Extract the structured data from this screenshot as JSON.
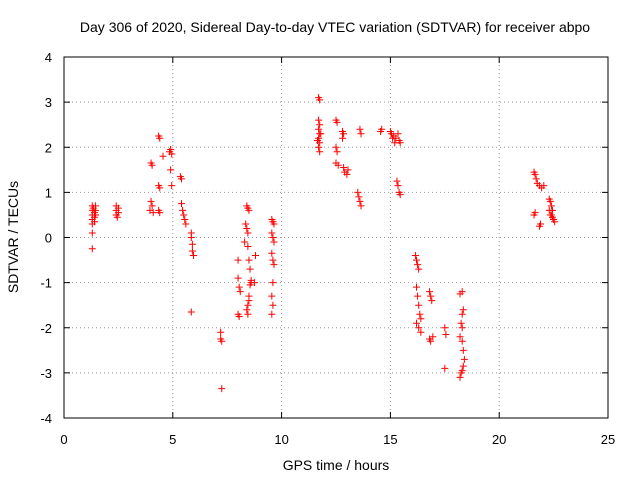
{
  "chart_data": {
    "type": "scatter",
    "title": "Day 306 of 2020, Sidereal Day-to-day VTEC variation (SDTVAR) for receiver abpo",
    "xlabel": "GPS time / hours",
    "ylabel": "SDTVAR / TECUs",
    "xlim": [
      0,
      25
    ],
    "ylim": [
      -4,
      4
    ],
    "xticks": [
      0,
      5,
      10,
      15,
      20,
      25
    ],
    "yticks": [
      -4,
      -3,
      -2,
      -1,
      0,
      1,
      2,
      3,
      4
    ],
    "grid": true,
    "marker": "+",
    "color": "#ff0000",
    "series": [
      {
        "name": "SDTVAR",
        "points": [
          [
            1.3,
            0.7
          ],
          [
            1.3,
            0.6
          ],
          [
            1.3,
            0.5
          ],
          [
            1.3,
            0.4
          ],
          [
            1.3,
            0.3
          ],
          [
            1.3,
            0.1
          ],
          [
            1.3,
            -0.25
          ],
          [
            1.35,
            0.65
          ],
          [
            1.4,
            0.55
          ],
          [
            1.4,
            0.45
          ],
          [
            1.4,
            0.35
          ],
          [
            1.45,
            0.6
          ],
          [
            1.45,
            0.5
          ],
          [
            1.45,
            0.7
          ],
          [
            2.4,
            0.7
          ],
          [
            2.4,
            0.6
          ],
          [
            2.4,
            0.5
          ],
          [
            2.45,
            0.45
          ],
          [
            2.5,
            0.65
          ],
          [
            2.5,
            0.55
          ],
          [
            3.95,
            0.6
          ],
          [
            4.0,
            0.8
          ],
          [
            4.0,
            1.65
          ],
          [
            4.05,
            1.6
          ],
          [
            4.05,
            0.7
          ],
          [
            4.1,
            0.55
          ],
          [
            4.35,
            2.25
          ],
          [
            4.4,
            2.2
          ],
          [
            4.35,
            1.15
          ],
          [
            4.4,
            1.1
          ],
          [
            4.35,
            0.6
          ],
          [
            4.4,
            0.55
          ],
          [
            4.55,
            1.8
          ],
          [
            4.85,
            1.9
          ],
          [
            4.9,
            1.95
          ],
          [
            4.95,
            1.85
          ],
          [
            4.9,
            1.5
          ],
          [
            4.95,
            1.15
          ],
          [
            5.35,
            1.35
          ],
          [
            5.4,
            1.3
          ],
          [
            5.4,
            0.75
          ],
          [
            5.45,
            0.6
          ],
          [
            5.5,
            0.5
          ],
          [
            5.55,
            0.4
          ],
          [
            5.6,
            0.3
          ],
          [
            5.85,
            0.1
          ],
          [
            5.85,
            0.0
          ],
          [
            5.9,
            -0.15
          ],
          [
            5.9,
            -0.3
          ],
          [
            5.95,
            -0.4
          ],
          [
            5.85,
            -1.65
          ],
          [
            7.2,
            -2.1
          ],
          [
            7.2,
            -2.25
          ],
          [
            7.25,
            -2.3
          ],
          [
            7.25,
            -3.35
          ],
          [
            8.0,
            -0.5
          ],
          [
            8.0,
            -0.9
          ],
          [
            8.05,
            -1.1
          ],
          [
            8.1,
            -1.2
          ],
          [
            8.0,
            -1.7
          ],
          [
            8.05,
            -1.75
          ],
          [
            8.3,
            -0.1
          ],
          [
            8.35,
            0.3
          ],
          [
            8.4,
            0.7
          ],
          [
            8.45,
            0.65
          ],
          [
            8.5,
            0.6
          ],
          [
            8.4,
            0.2
          ],
          [
            8.45,
            0.1
          ],
          [
            8.45,
            -0.2
          ],
          [
            8.5,
            -0.5
          ],
          [
            8.55,
            -0.7
          ],
          [
            8.6,
            -0.95
          ],
          [
            8.55,
            -1.05
          ],
          [
            8.5,
            -1.3
          ],
          [
            8.45,
            -1.5
          ],
          [
            8.4,
            -1.6
          ],
          [
            8.45,
            -1.7
          ],
          [
            8.5,
            -1.4
          ],
          [
            8.6,
            -1.0
          ],
          [
            8.75,
            -1.0
          ],
          [
            8.8,
            -0.4
          ],
          [
            9.55,
            0.4
          ],
          [
            9.6,
            0.35
          ],
          [
            9.65,
            0.3
          ],
          [
            9.55,
            0.1
          ],
          [
            9.6,
            0.0
          ],
          [
            9.65,
            -0.1
          ],
          [
            9.55,
            -0.35
          ],
          [
            9.6,
            -0.5
          ],
          [
            9.65,
            -0.6
          ],
          [
            9.6,
            -1.0
          ],
          [
            9.55,
            -1.3
          ],
          [
            9.6,
            -1.5
          ],
          [
            9.55,
            -1.7
          ],
          [
            11.7,
            3.1
          ],
          [
            11.75,
            3.05
          ],
          [
            11.7,
            2.6
          ],
          [
            11.75,
            2.5
          ],
          [
            11.7,
            2.4
          ],
          [
            11.75,
            2.3
          ],
          [
            11.7,
            2.2
          ],
          [
            11.75,
            2.1
          ],
          [
            11.7,
            2.0
          ],
          [
            11.75,
            1.9
          ],
          [
            11.8,
            2.3
          ],
          [
            11.65,
            2.15
          ],
          [
            12.5,
            2.6
          ],
          [
            12.55,
            2.55
          ],
          [
            12.5,
            2.0
          ],
          [
            12.55,
            1.9
          ],
          [
            12.5,
            1.65
          ],
          [
            12.6,
            1.6
          ],
          [
            12.8,
            2.35
          ],
          [
            12.85,
            2.3
          ],
          [
            12.8,
            2.2
          ],
          [
            12.85,
            1.55
          ],
          [
            12.9,
            1.45
          ],
          [
            13.0,
            1.4
          ],
          [
            13.05,
            1.5
          ],
          [
            13.6,
            2.4
          ],
          [
            13.65,
            2.3
          ],
          [
            13.5,
            1.0
          ],
          [
            13.55,
            0.9
          ],
          [
            13.6,
            0.8
          ],
          [
            13.65,
            0.7
          ],
          [
            14.55,
            2.35
          ],
          [
            14.6,
            2.4
          ],
          [
            15.0,
            2.35
          ],
          [
            15.05,
            2.3
          ],
          [
            15.1,
            2.2
          ],
          [
            15.15,
            2.25
          ],
          [
            15.2,
            2.1
          ],
          [
            15.25,
            2.2
          ],
          [
            15.35,
            2.3
          ],
          [
            15.4,
            2.15
          ],
          [
            15.45,
            2.1
          ],
          [
            15.3,
            1.25
          ],
          [
            15.35,
            1.15
          ],
          [
            15.4,
            1.0
          ],
          [
            15.45,
            0.95
          ],
          [
            16.15,
            -0.4
          ],
          [
            16.2,
            -0.5
          ],
          [
            16.25,
            -0.6
          ],
          [
            16.3,
            -0.7
          ],
          [
            16.2,
            -1.1
          ],
          [
            16.25,
            -1.3
          ],
          [
            16.3,
            -1.5
          ],
          [
            16.35,
            -1.7
          ],
          [
            16.4,
            -1.8
          ],
          [
            16.2,
            -1.9
          ],
          [
            16.3,
            -2.0
          ],
          [
            16.4,
            -2.1
          ],
          [
            16.8,
            -1.2
          ],
          [
            16.85,
            -1.3
          ],
          [
            16.9,
            -1.4
          ],
          [
            16.8,
            -2.25
          ],
          [
            16.85,
            -2.3
          ],
          [
            16.95,
            -2.2
          ],
          [
            17.5,
            -2.0
          ],
          [
            17.55,
            -2.15
          ],
          [
            17.5,
            -2.9
          ],
          [
            18.2,
            -1.25
          ],
          [
            18.3,
            -1.2
          ],
          [
            18.35,
            -1.6
          ],
          [
            18.3,
            -1.7
          ],
          [
            18.25,
            -1.9
          ],
          [
            18.3,
            -2.0
          ],
          [
            18.2,
            -2.2
          ],
          [
            18.3,
            -2.3
          ],
          [
            18.35,
            -2.5
          ],
          [
            18.4,
            -2.7
          ],
          [
            18.35,
            -2.85
          ],
          [
            18.25,
            -3.0
          ],
          [
            18.2,
            -3.1
          ],
          [
            18.3,
            -2.95
          ],
          [
            21.6,
            1.45
          ],
          [
            21.65,
            1.4
          ],
          [
            21.7,
            1.3
          ],
          [
            21.75,
            1.2
          ],
          [
            21.85,
            1.15
          ],
          [
            21.95,
            1.1
          ],
          [
            22.05,
            1.15
          ],
          [
            21.6,
            0.5
          ],
          [
            21.65,
            0.55
          ],
          [
            21.85,
            0.25
          ],
          [
            21.9,
            0.3
          ],
          [
            22.3,
            0.85
          ],
          [
            22.35,
            0.8
          ],
          [
            22.4,
            0.7
          ],
          [
            22.45,
            0.6
          ],
          [
            22.4,
            0.5
          ],
          [
            22.45,
            0.45
          ],
          [
            22.5,
            0.4
          ],
          [
            22.55,
            0.35
          ],
          [
            22.3,
            0.6
          ],
          [
            22.35,
            0.5
          ]
        ]
      }
    ]
  }
}
